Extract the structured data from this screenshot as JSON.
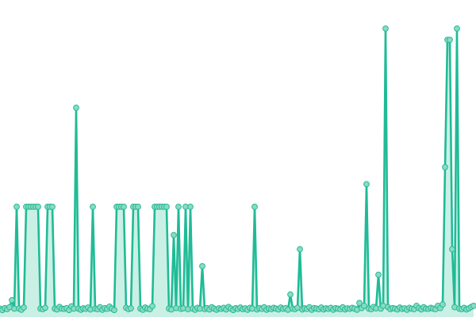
{
  "chart_data": {
    "type": "line",
    "title": "",
    "xlabel": "",
    "ylabel": "",
    "grid": false,
    "legend": "none",
    "ylim": [
      0,
      100
    ],
    "colors": {
      "line": "#1fbb96",
      "marker_fill": "#86dcc5",
      "marker_stroke": "#2bb893",
      "area": "#9fe3cf"
    },
    "series": [
      {
        "values": [
          1,
          0.5,
          1.2,
          0.8,
          1.5,
          4,
          1,
          37,
          1,
          0.6,
          1.4,
          37,
          37,
          37,
          37,
          37,
          37,
          1,
          0.8,
          1.3,
          37,
          37,
          37,
          1,
          0.7,
          1.6,
          1,
          0.9,
          1.2,
          0.5,
          1.8,
          1,
          72,
          1,
          0.6,
          1.1,
          0.9,
          1.4,
          0.7,
          37,
          1,
          0.8,
          1.5,
          0.6,
          1.2,
          0.9,
          1.7,
          1,
          0.5,
          37,
          37,
          37,
          37,
          1.3,
          0.8,
          1.1,
          37,
          37,
          37,
          1,
          0.6,
          1.4,
          1,
          0.8,
          1.9,
          37,
          37,
          37,
          37,
          37,
          37,
          1,
          0.7,
          27,
          1.2,
          37,
          0.9,
          1.1,
          37,
          0.8,
          37,
          1,
          0.6,
          1.3,
          1,
          16,
          0.8,
          1.2,
          0.7,
          1.5,
          1,
          0.6,
          1.1,
          0.9,
          1.3,
          0.7,
          1.6,
          1,
          0.5,
          1.2,
          0.9,
          1.4,
          0.8,
          1.1,
          0.6,
          1.3,
          1,
          37,
          0.7,
          1.2,
          0.9,
          1.5,
          0.6,
          1.1,
          0.8,
          1.3,
          1,
          0.7,
          1.4,
          0.9,
          1.2,
          0.6,
          6,
          1,
          0.8,
          1.3,
          22,
          0.7,
          1.1,
          0.9,
          1.5,
          0.6,
          1.2,
          1,
          0.8,
          1.4,
          0.7,
          1.1,
          0.9,
          1.3,
          0.6,
          1.2,
          1,
          0.8,
          1.5,
          0.7,
          1.1,
          0.9,
          1.3,
          1,
          0.6,
          3,
          1.2,
          2,
          45,
          1,
          0.8,
          1.6,
          1.1,
          13,
          1,
          2,
          100,
          1.5,
          0.8,
          1.2,
          1,
          0.7,
          1.4,
          0.9,
          1.1,
          0.6,
          1.3,
          1,
          0.8,
          2,
          1.2,
          0.7,
          1.5,
          1,
          0.9,
          1.3,
          1,
          0.8,
          2,
          1.2,
          2.5,
          51,
          96,
          96,
          22,
          1.5,
          100,
          1,
          0.8,
          1.3,
          0.7,
          1.1,
          1.6,
          2
        ]
      }
    ]
  }
}
